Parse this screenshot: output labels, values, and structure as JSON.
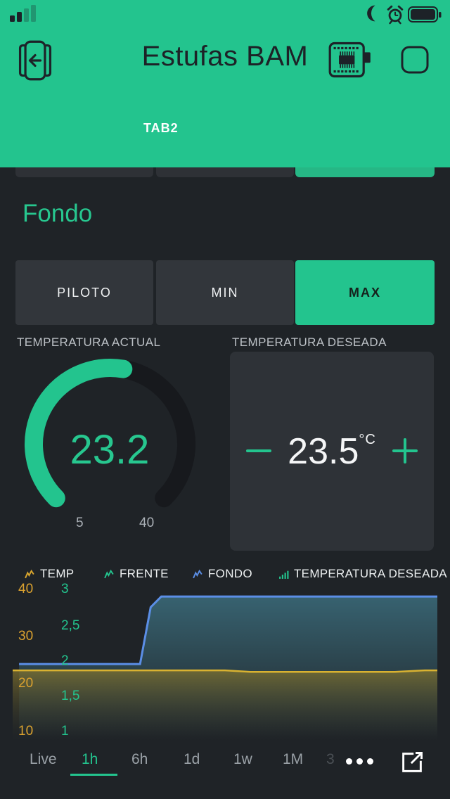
{
  "header": {
    "title": "Estufas BAM",
    "tab": "TAB2"
  },
  "section": {
    "heading": "Fondo"
  },
  "mode_selector": {
    "options": [
      "PILOTO",
      "MIN",
      "MAX"
    ],
    "selected": "MAX"
  },
  "gauge": {
    "title": "TEMPERATURA ACTUAL",
    "value": "23.2",
    "min": "5",
    "max": "40"
  },
  "stepper": {
    "title": "TEMPERATURA DESEADA",
    "value": "23.5",
    "unit": "°C"
  },
  "time_bar": {
    "ranges": [
      "Live",
      "1h",
      "6h",
      "1d",
      "1w",
      "1M",
      "3M"
    ],
    "selected": "1h"
  },
  "colors": {
    "accent_green": "#23c48e",
    "background": "#1f2327",
    "card": "#2e3237",
    "button_dark": "#32363b",
    "axis_orange": "#dba22f",
    "line_blue": "#5b8ee6",
    "line_yellow": "#d9b231"
  },
  "chart_data": {
    "type": "area",
    "legend": [
      {
        "label": "TEMP",
        "color": "#d9a62e",
        "icon": "sparkline"
      },
      {
        "label": "FRENTE",
        "color": "#23c48e",
        "icon": "sparkline"
      },
      {
        "label": "FONDO",
        "color": "#5b8ee6",
        "icon": "sparkline"
      },
      {
        "label": "TEMPERATURA DESEADA",
        "color": "#23c48e",
        "icon": "bars"
      }
    ],
    "left_axis": {
      "color": "#dba22f",
      "ticks": [
        "40",
        "30",
        "20",
        "10"
      ]
    },
    "green_axis": {
      "color": "#23c48e",
      "ticks": [
        "3",
        "2,5",
        "2",
        "1,5",
        "1"
      ]
    },
    "x_window": "1h",
    "series": [
      {
        "name": "FONDO",
        "axis": "green",
        "color": "#5b8ee6",
        "stroke_width": 3,
        "draw_order": 1,
        "fill_from": "rgba(58,105,120,0.9)",
        "fill_to": "rgba(58,105,120,0)",
        "points": [
          [
            0.015,
            1.95
          ],
          [
            0.3,
            1.95
          ],
          [
            0.325,
            2.75
          ],
          [
            0.35,
            2.9
          ],
          [
            1,
            2.9
          ]
        ]
      },
      {
        "name": "TEMP",
        "axis": "left",
        "color": "#d9b231",
        "stroke_width": 2.5,
        "draw_order": 2,
        "fill_from": "rgba(130,115,45,0.75)",
        "fill_to": "rgba(60,60,40,0)",
        "points": [
          [
            0,
            22.9
          ],
          [
            0.5,
            22.9
          ],
          [
            0.56,
            22.6
          ],
          [
            0.9,
            22.6
          ],
          [
            0.97,
            22.9
          ],
          [
            1,
            22.9
          ]
        ]
      },
      {
        "name": "FRENTE",
        "axis": "green",
        "color": "#23c48e",
        "draw_order": 0,
        "points": []
      },
      {
        "name": "TEMPERATURA DESEADA",
        "axis": "left",
        "color": "#23c48e",
        "draw_order": 0,
        "points": []
      }
    ]
  }
}
